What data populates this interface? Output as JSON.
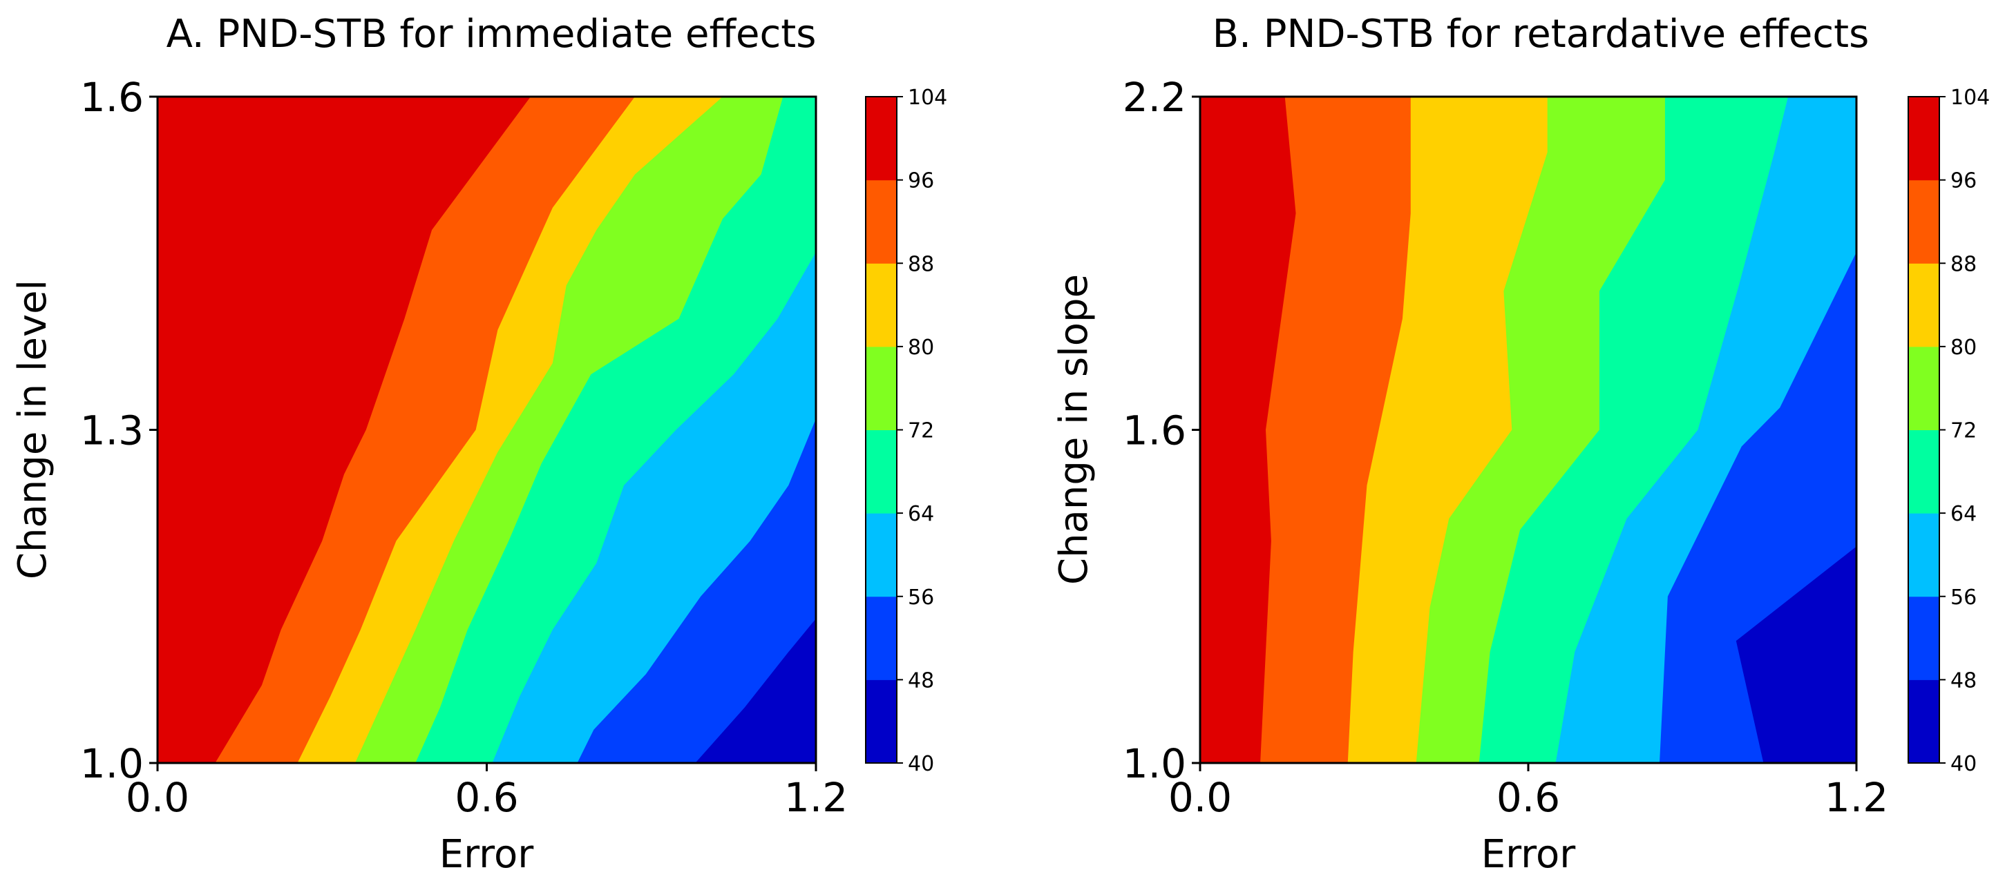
{
  "chart_data": [
    {
      "type": "contour",
      "title": "A. PND-STB for immediate effects",
      "xlabel": "Error",
      "ylabel": "Change in level",
      "xlim": [
        0.0,
        1.2
      ],
      "ylim": [
        1.0,
        1.6
      ],
      "xticks": [
        "0.0",
        "0.6",
        "1.2"
      ],
      "yticks": [
        "1.0",
        "1.3",
        "1.6"
      ],
      "levels": [
        40,
        48,
        56,
        64,
        72,
        80,
        88,
        96,
        104
      ],
      "colorbar_ticks": [
        "40",
        "48",
        "56",
        "64",
        "72",
        "80",
        "88",
        "96",
        "104"
      ],
      "colors": [
        "#0000c8",
        "#0040ff",
        "#00c0ff",
        "#00ffa0",
        "#80ff20",
        "#ffd000",
        "#ff5a00",
        "#e00000"
      ],
      "boundaries": [
        {
          "level": 96,
          "points": [
            [
              0.105,
              1.0
            ],
            [
              0.19,
              1.07
            ],
            [
              0.225,
              1.12
            ],
            [
              0.3,
              1.2
            ],
            [
              0.34,
              1.26
            ],
            [
              0.38,
              1.3
            ],
            [
              0.45,
              1.4
            ],
            [
              0.5,
              1.48
            ],
            [
              0.68,
              1.6
            ]
          ]
        },
        {
          "level": 88,
          "points": [
            [
              0.255,
              1.0
            ],
            [
              0.315,
              1.06
            ],
            [
              0.37,
              1.12
            ],
            [
              0.435,
              1.2
            ],
            [
              0.58,
              1.3
            ],
            [
              0.62,
              1.39
            ],
            [
              0.72,
              1.5
            ],
            [
              0.87,
              1.6
            ]
          ]
        },
        {
          "level": 80,
          "points": [
            [
              0.36,
              1.0
            ],
            [
              0.415,
              1.06
            ],
            [
              0.47,
              1.12
            ],
            [
              0.54,
              1.2
            ],
            [
              0.62,
              1.28
            ],
            [
              0.72,
              1.36
            ],
            [
              0.745,
              1.43
            ],
            [
              0.8,
              1.48
            ],
            [
              0.87,
              1.53
            ],
            [
              1.03,
              1.6
            ]
          ]
        },
        {
          "level": 72,
          "points": [
            [
              0.47,
              1.0
            ],
            [
              0.515,
              1.05
            ],
            [
              0.565,
              1.12
            ],
            [
              0.64,
              1.2
            ],
            [
              0.7,
              1.27
            ],
            [
              0.79,
              1.35
            ],
            [
              0.95,
              1.4
            ],
            [
              1.03,
              1.49
            ],
            [
              1.1,
              1.53
            ],
            [
              1.14,
              1.6
            ]
          ]
        },
        {
          "level": 64,
          "points": [
            [
              0.61,
              1.0
            ],
            [
              0.66,
              1.06
            ],
            [
              0.72,
              1.12
            ],
            [
              0.8,
              1.18
            ],
            [
              0.85,
              1.25
            ],
            [
              0.945,
              1.3
            ],
            [
              1.05,
              1.35
            ],
            [
              1.13,
              1.4
            ],
            [
              1.2,
              1.46
            ]
          ]
        },
        {
          "level": 56,
          "points": [
            [
              0.765,
              1.0
            ],
            [
              0.795,
              1.03
            ],
            [
              0.89,
              1.08
            ],
            [
              0.99,
              1.15
            ],
            [
              1.08,
              1.2
            ],
            [
              1.15,
              1.25
            ],
            [
              1.2,
              1.31
            ]
          ]
        },
        {
          "level": 48,
          "points": [
            [
              0.98,
              1.0
            ],
            [
              1.07,
              1.05
            ],
            [
              1.15,
              1.1
            ],
            [
              1.2,
              1.13
            ]
          ]
        }
      ]
    },
    {
      "type": "contour",
      "title": "B. PND-STB for retardative effects",
      "xlabel": "Error",
      "ylabel": "Change in slope",
      "xlim": [
        0.0,
        1.2
      ],
      "ylim": [
        1.0,
        2.2
      ],
      "xticks": [
        "0.0",
        "0.6",
        "1.2"
      ],
      "yticks": [
        "1.0",
        "1.6",
        "2.2"
      ],
      "levels": [
        40,
        48,
        56,
        64,
        72,
        80,
        88,
        96,
        104
      ],
      "colorbar_ticks": [
        "40",
        "48",
        "56",
        "64",
        "72",
        "80",
        "88",
        "96",
        "104"
      ],
      "colors": [
        "#0000c8",
        "#0040ff",
        "#00c0ff",
        "#00ffa0",
        "#80ff20",
        "#ffd000",
        "#ff5a00",
        "#e00000"
      ],
      "boundaries": [
        {
          "level": 96,
          "points": [
            [
              0.11,
              1.0
            ],
            [
              0.13,
              1.4
            ],
            [
              0.12,
              1.6
            ],
            [
              0.175,
              1.99
            ],
            [
              0.155,
              2.2
            ]
          ]
        },
        {
          "level": 88,
          "points": [
            [
              0.27,
              1.0
            ],
            [
              0.28,
              1.2
            ],
            [
              0.305,
              1.5
            ],
            [
              0.37,
              1.8
            ],
            [
              0.385,
              1.99
            ],
            [
              0.385,
              2.2
            ]
          ]
        },
        {
          "level": 80,
          "points": [
            [
              0.395,
              1.0
            ],
            [
              0.42,
              1.28
            ],
            [
              0.455,
              1.44
            ],
            [
              0.57,
              1.6
            ],
            [
              0.555,
              1.85
            ],
            [
              0.635,
              2.1
            ],
            [
              0.635,
              2.2
            ]
          ]
        },
        {
          "level": 72,
          "points": [
            [
              0.51,
              1.0
            ],
            [
              0.53,
              1.2
            ],
            [
              0.585,
              1.42
            ],
            [
              0.73,
              1.6
            ],
            [
              0.73,
              1.85
            ],
            [
              0.85,
              2.05
            ],
            [
              0.85,
              2.2
            ]
          ]
        },
        {
          "level": 64,
          "points": [
            [
              0.65,
              1.0
            ],
            [
              0.685,
              1.2
            ],
            [
              0.78,
              1.44
            ],
            [
              0.91,
              1.6
            ],
            [
              0.985,
              1.86
            ],
            [
              1.05,
              2.1
            ],
            [
              1.075,
              2.2
            ]
          ]
        },
        {
          "level": 56,
          "points": [
            [
              0.84,
              1.0
            ],
            [
              0.855,
              1.3
            ],
            [
              0.99,
              1.57
            ],
            [
              1.06,
              1.64
            ],
            [
              1.2,
              1.92
            ]
          ]
        },
        {
          "level": 48,
          "points": [
            [
              1.03,
              1.0
            ],
            [
              0.98,
              1.22
            ],
            [
              1.2,
              1.39
            ]
          ]
        }
      ]
    }
  ]
}
